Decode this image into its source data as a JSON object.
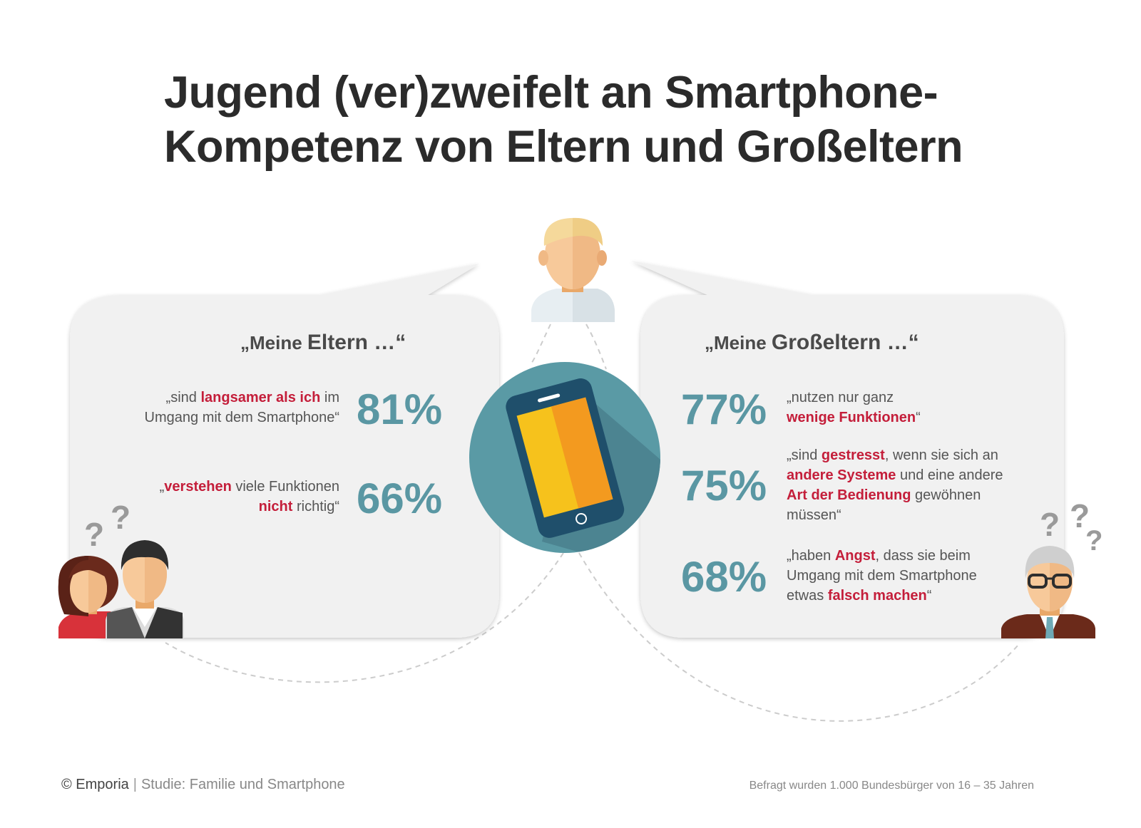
{
  "title": {
    "line1": "Jugend (ver)zweifelt an Smartphone-",
    "line2": "Kompetenz von Eltern und Großeltern"
  },
  "parents": {
    "heading_prefix": "„Meine ",
    "heading_main": "Eltern …“",
    "items": [
      {
        "percent": "81%",
        "parts": [
          {
            "t": "„sind "
          },
          {
            "t": "langsamer als ich",
            "h": true
          },
          {
            "t": " im"
          },
          {
            "br": true
          },
          {
            "t": "Umgang mit dem Smartphone“"
          }
        ]
      },
      {
        "percent": "66%",
        "parts": [
          {
            "t": "„"
          },
          {
            "t": "verstehen",
            "h": true
          },
          {
            "t": " viele Funktionen"
          },
          {
            "br": true
          },
          {
            "t": "nicht",
            "h": true
          },
          {
            "t": " richtig“"
          }
        ]
      }
    ]
  },
  "grandparents": {
    "heading_prefix": "„Meine ",
    "heading_main": "Großeltern …“",
    "items": [
      {
        "percent": "77%",
        "parts": [
          {
            "t": "„nutzen nur ganz"
          },
          {
            "br": true
          },
          {
            "t": "wenige Funktionen",
            "h": true
          },
          {
            "t": "“"
          }
        ]
      },
      {
        "percent": "75%",
        "parts": [
          {
            "t": "„sind "
          },
          {
            "t": "gestresst",
            "h": true
          },
          {
            "t": ", wenn sie sich an"
          },
          {
            "br": true
          },
          {
            "t": "andere Systeme",
            "h": true
          },
          {
            "t": " und eine andere"
          },
          {
            "br": true
          },
          {
            "t": "Art der Bedienung",
            "h": true
          },
          {
            "t": " gewöhnen"
          },
          {
            "br": true
          },
          {
            "t": "müssen“"
          }
        ]
      },
      {
        "percent": "68%",
        "parts": [
          {
            "t": "„haben "
          },
          {
            "t": "Angst",
            "h": true
          },
          {
            "t": ", dass sie beim"
          },
          {
            "br": true
          },
          {
            "t": "Umgang mit dem Smartphone"
          },
          {
            "br": true
          },
          {
            "t": "etwas "
          },
          {
            "t": "falsch machen",
            "h": true
          },
          {
            "t": "“"
          }
        ]
      }
    ]
  },
  "footer": {
    "copyright": "© Emporia",
    "separator": "|",
    "study": "Studie: Familie und Smartphone",
    "note": "Befragt wurden 1.000 Bundesbürger von 16 – 35 Jahren"
  },
  "question_marks": {
    "left": [
      "?",
      "?"
    ],
    "right": [
      "?",
      "?",
      "?"
    ]
  },
  "colors": {
    "accent_red": "#c41e3a",
    "percent_teal": "#5a97a3",
    "phone_circle": "#5a9aa5",
    "phone_body": "#1f4f6b",
    "screen_yellow": "#f6c21c",
    "screen_orange": "#f39a1f",
    "bubble_gray": "#f1f1f1"
  },
  "icons": [
    "youth-avatar-icon",
    "smartphone-icon",
    "mother-icon",
    "father-icon",
    "grandfather-icon",
    "question-mark-icon"
  ]
}
